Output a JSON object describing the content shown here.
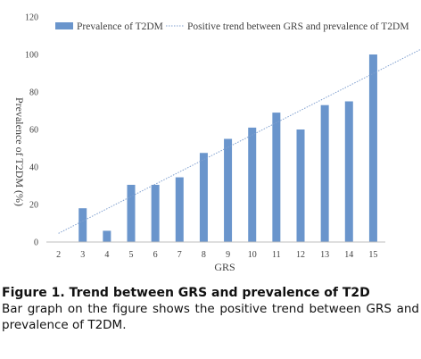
{
  "chart_data": {
    "type": "bar",
    "categories": [
      "2",
      "3",
      "4",
      "5",
      "6",
      "7",
      "8",
      "9",
      "10",
      "11",
      "12",
      "13",
      "14",
      "15"
    ],
    "series": [
      {
        "name": "Prevalence of T2DM",
        "values": [
          0,
          18,
          6,
          30.5,
          30.5,
          34.5,
          47.5,
          55,
          61,
          69,
          60,
          73,
          75,
          100
        ]
      }
    ],
    "trendline": {
      "name": "Positive trend between GRS and prevalence of T2DM",
      "y_at_first": 4.6,
      "y_at_last": 104.3
    },
    "xlabel": "GRS",
    "ylabel": "Prevalence of T2DM (%)",
    "ylim": [
      0,
      120
    ],
    "yticks": [
      "0",
      "20",
      "40",
      "60",
      "80",
      "100",
      "120"
    ],
    "grid": false,
    "legend_position": "top",
    "colors": {
      "bar": "#6A95CC",
      "trend": "#7F9FCF",
      "axis": "#BFBFBF"
    }
  },
  "caption": {
    "title": "Figure 1. Trend between GRS and prevalence of T2D",
    "text": "Bar graph on the figure shows the positive trend between GRS and prevalence of T2DM."
  }
}
